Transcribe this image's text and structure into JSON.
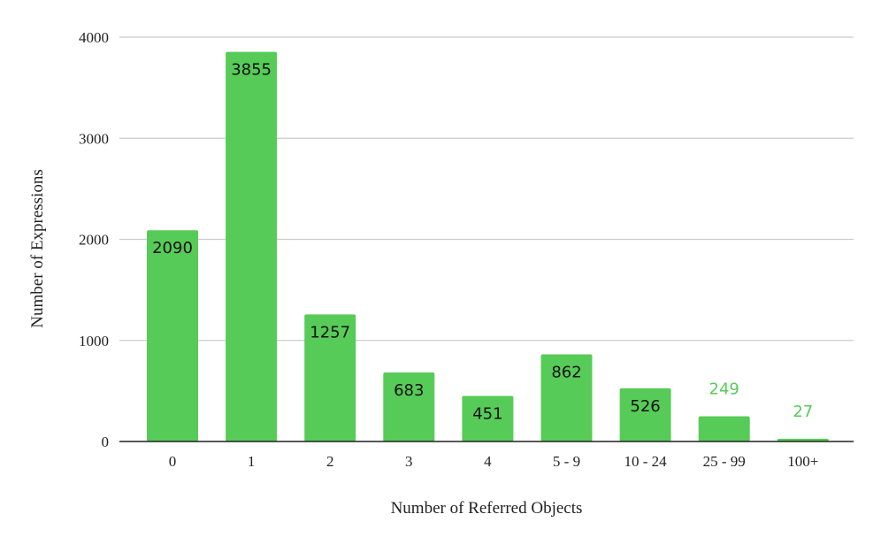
{
  "chart_data": {
    "type": "bar",
    "title": "",
    "xlabel": "Number of Referred Objects",
    "ylabel": "Number of Expressions",
    "categories": [
      "0",
      "1",
      "2",
      "3",
      "4",
      "5 - 9",
      "10 - 24",
      "25 - 99",
      "100+"
    ],
    "values": [
      2090,
      3855,
      1257,
      683,
      451,
      862,
      526,
      249,
      27
    ],
    "ylim": [
      0,
      4000
    ],
    "yticks": [
      0,
      1000,
      2000,
      3000,
      4000
    ],
    "grid": true,
    "legend": "none",
    "bar_color": "#57cb57",
    "label_inside_color": "#111111",
    "label_outside_color": "#57cb57",
    "gridline_color": "#cccccc",
    "axis_color": "#222222"
  }
}
